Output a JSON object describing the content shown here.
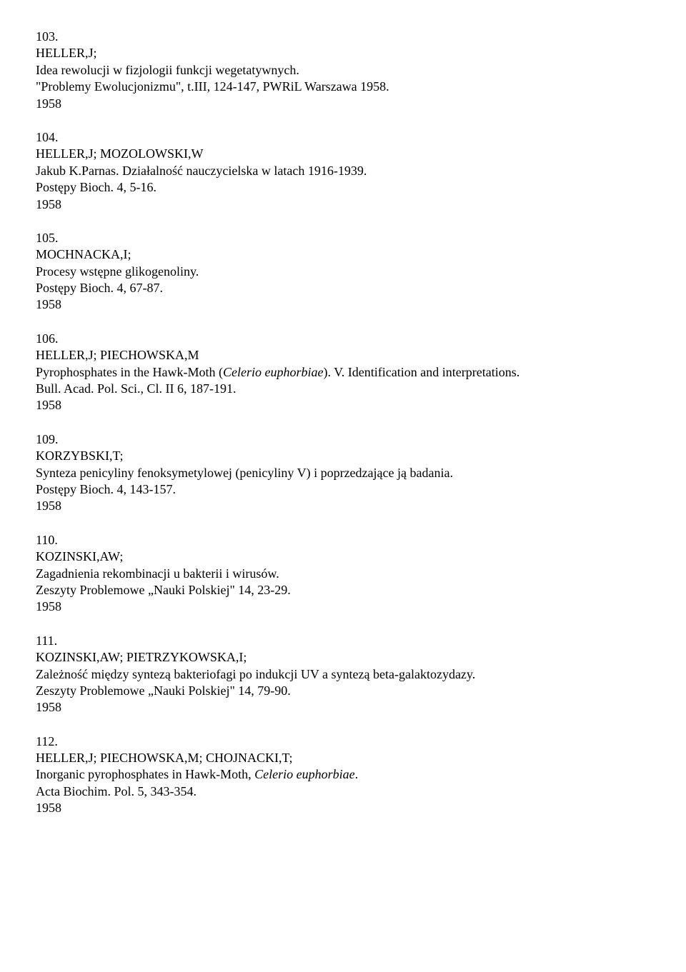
{
  "entries": [
    {
      "number": "103.",
      "authors": "HELLER,J;",
      "title_plain": "Idea rewolucji w fizjologii funkcji wegetatywnych.",
      "source": "\"Problemy Ewolucjonizmu\", t.III, 124-147, PWRiL Warszawa 1958.",
      "year": "1958"
    },
    {
      "number": "104.",
      "authors": "HELLER,J; MOZOLOWSKI,W",
      "title_plain": "Jakub K.Parnas. Działalność nauczycielska w latach 1916-1939.",
      "source": "Postępy Bioch. 4, 5-16.",
      "year": "1958"
    },
    {
      "number": "105.",
      "authors": "MOCHNACKA,I;",
      "title_plain": "Procesy wstępne glikogenoliny.",
      "source": "Postępy Bioch. 4, 67-87.",
      "year": "1958"
    },
    {
      "number": "106.",
      "authors": "HELLER,J; PIECHOWSKA,M",
      "title_pre": "Pyrophosphates in the Hawk-Moth (",
      "title_italic": "Celerio euphorbiae",
      "title_post": "). V. Identification and interpretations.",
      "source": "Bull. Acad. Pol. Sci., Cl. II  6, 187-191.",
      "year": "1958"
    },
    {
      "number": "109.",
      "authors": "KORZYBSKI,T;",
      "title_plain": "Synteza penicyliny fenoksymetylowej (penicyliny V) i poprzedzające ją badania.",
      "source": "Postępy Bioch.  4, 143-157.",
      "year": "1958"
    },
    {
      "number": "110.",
      "authors": "KOZINSKI,AW;",
      "title_plain": "Zagadnienia rekombinacji u bakterii i wirusów.",
      "source": "Zeszyty Problemowe „Nauki Polskiej\"  14, 23-29.",
      "year": "1958"
    },
    {
      "number": "111.",
      "authors": "KOZINSKI,AW; PIETRZYKOWSKA,I;",
      "title_plain": "Zależność między syntezą bakteriofagi po indukcji UV a syntezą beta-galaktozydazy.",
      "source": "Zeszyty Problemowe „Nauki Polskiej\"  14, 79-90.",
      "year": "1958"
    },
    {
      "number": "112.",
      "authors": "HELLER,J; PIECHOWSKA,M; CHOJNACKI,T;",
      "title_pre": "Inorganic pyrophosphates in Hawk-Moth, ",
      "title_italic": "Celerio euphorbiae",
      "title_post": ".",
      "source": "Acta Biochim. Pol. 5, 343-354.",
      "year": "1958"
    }
  ]
}
